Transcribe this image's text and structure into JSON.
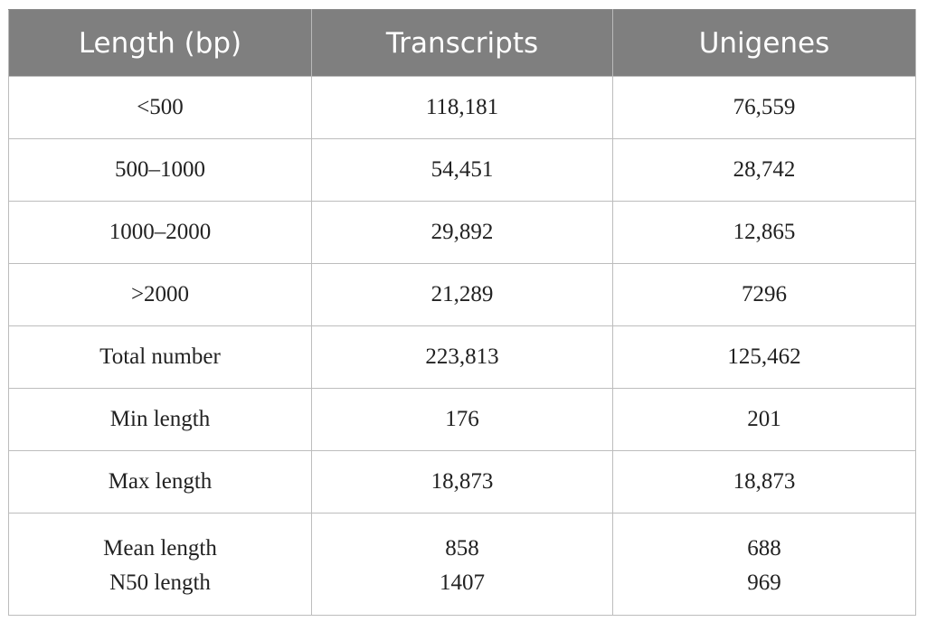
{
  "table": {
    "headers": [
      "Length (bp)",
      "Transcripts",
      "Unigenes"
    ],
    "rows": [
      [
        "<500",
        "118,181",
        "76,559"
      ],
      [
        "500–1000",
        "54,451",
        "28,742"
      ],
      [
        "1000–2000",
        "29,892",
        "12,865"
      ],
      [
        ">2000",
        "21,289",
        "7296"
      ],
      [
        "Total number",
        "223,813",
        "125,462"
      ],
      [
        "Min length",
        "176",
        "201"
      ],
      [
        "Max length",
        "18,873",
        "18,873"
      ]
    ],
    "last_row": {
      "line1": [
        "Mean length",
        "858",
        "688"
      ],
      "line2": [
        "N50 length",
        "1407",
        "969"
      ]
    }
  }
}
